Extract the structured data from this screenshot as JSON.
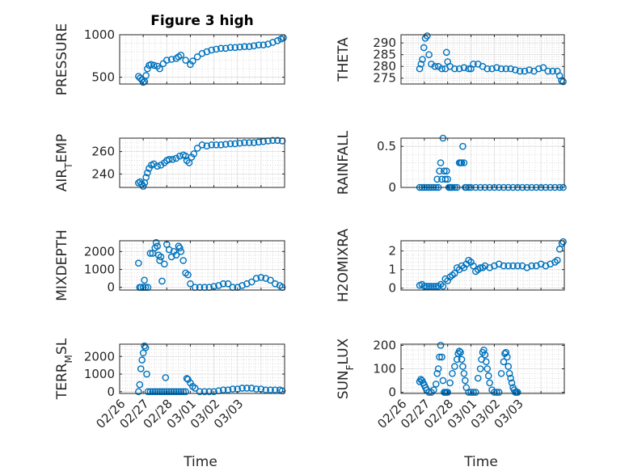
{
  "figure": {
    "title": "Figure 3 high"
  },
  "marker_color": "#0072BD",
  "chart_data": [
    {
      "id": "pressure",
      "type": "scatter",
      "title": "Figure 3 high",
      "xlabel": "",
      "ylabel": "PRESSURE",
      "ylim": [
        420,
        1000
      ],
      "yticks": [
        500,
        1000
      ],
      "ytick_labels": [
        "500",
        "1000"
      ],
      "xlim": [
        0,
        7
      ],
      "xticks": [
        0,
        1,
        2,
        3,
        4,
        5,
        6,
        7
      ],
      "xtick_labels": [],
      "grid": true,
      "x": [
        0.8,
        0.87,
        0.94,
        1.0,
        1.06,
        1.12,
        1.18,
        1.25,
        1.33,
        1.45,
        1.6,
        1.7,
        1.85,
        2.0,
        2.2,
        2.4,
        2.5,
        2.6,
        2.8,
        3.0,
        3.1,
        3.3,
        3.5,
        3.7,
        3.9,
        4.1,
        4.3,
        4.5,
        4.7,
        4.9,
        5.1,
        5.3,
        5.5,
        5.7,
        5.9,
        6.1,
        6.3,
        6.5,
        6.7,
        6.85,
        6.95
      ],
      "y": [
        510,
        490,
        470,
        440,
        450,
        520,
        600,
        640,
        650,
        640,
        630,
        600,
        660,
        700,
        710,
        720,
        740,
        760,
        700,
        650,
        690,
        740,
        780,
        800,
        820,
        830,
        840,
        840,
        850,
        850,
        855,
        860,
        860,
        870,
        880,
        880,
        890,
        910,
        930,
        950,
        965
      ]
    },
    {
      "id": "theta",
      "type": "scatter",
      "title": "",
      "xlabel": "",
      "ylabel": "THETA",
      "ylim": [
        272.5,
        293.5
      ],
      "yticks": [
        275,
        280,
        285,
        290
      ],
      "ytick_labels": [
        "275",
        "280",
        "285",
        "290"
      ],
      "xlim": [
        0,
        7
      ],
      "xticks": [
        0,
        1,
        2,
        3,
        4,
        5,
        6,
        7
      ],
      "xtick_labels": [],
      "grid": true,
      "x": [
        0.8,
        0.86,
        0.92,
        0.98,
        1.04,
        1.12,
        1.2,
        1.3,
        1.45,
        1.6,
        1.75,
        1.9,
        1.95,
        2.0,
        2.1,
        2.3,
        2.5,
        2.7,
        2.9,
        3.0,
        3.1,
        3.3,
        3.5,
        3.7,
        3.9,
        4.1,
        4.3,
        4.5,
        4.7,
        4.9,
        5.1,
        5.3,
        5.5,
        5.7,
        5.9,
        6.1,
        6.3,
        6.5,
        6.7,
        6.8,
        6.88,
        6.95
      ],
      "y": [
        279,
        281,
        283,
        288,
        292,
        293,
        285,
        281,
        280,
        280,
        279,
        279,
        286,
        282,
        280,
        279,
        279,
        279.5,
        279,
        279,
        281,
        281,
        280,
        279,
        279,
        279.5,
        279,
        279,
        279,
        278.5,
        278,
        278,
        278.5,
        278,
        279,
        279.5,
        278,
        278,
        278,
        276,
        274,
        273.5
      ]
    },
    {
      "id": "air_temp",
      "type": "scatter",
      "title": "",
      "xlabel": "",
      "ylabel": "AIR_TEMP",
      "ylim": [
        228,
        272
      ],
      "yticks": [
        240,
        260
      ],
      "ytick_labels": [
        "240",
        "260"
      ],
      "xlim": [
        0,
        7
      ],
      "xticks": [
        0,
        1,
        2,
        3,
        4,
        5,
        6,
        7
      ],
      "xtick_labels": [],
      "grid": true,
      "x": [
        0.8,
        0.87,
        0.94,
        1.0,
        1.06,
        1.12,
        1.18,
        1.25,
        1.35,
        1.45,
        1.6,
        1.75,
        1.9,
        2.0,
        2.1,
        2.25,
        2.4,
        2.55,
        2.7,
        2.8,
        2.85,
        2.95,
        3.05,
        3.15,
        3.3,
        3.5,
        3.7,
        3.9,
        4.1,
        4.3,
        4.5,
        4.7,
        4.9,
        5.1,
        5.3,
        5.5,
        5.7,
        5.9,
        6.1,
        6.3,
        6.5,
        6.7,
        6.9
      ],
      "y": [
        232,
        233,
        231,
        229,
        232,
        237,
        241,
        245,
        248,
        249,
        247,
        248,
        250,
        252,
        253,
        253,
        254,
        256,
        257,
        256,
        252,
        250,
        255,
        258,
        263,
        266,
        265,
        266,
        266,
        266,
        266.5,
        267,
        267,
        267.5,
        268,
        268,
        268,
        268.5,
        269,
        269.5,
        270,
        270,
        269.5
      ]
    },
    {
      "id": "rainfall",
      "type": "scatter",
      "title": "",
      "xlabel": "",
      "ylabel": "RAINFALL",
      "ylim": [
        0,
        0.6
      ],
      "yticks": [
        0,
        0.5
      ],
      "ytick_labels": [
        "0",
        "0.5"
      ],
      "xlim": [
        0,
        7
      ],
      "xticks": [
        0,
        1,
        2,
        3,
        4,
        5,
        6,
        7
      ],
      "xtick_labels": [],
      "grid": true,
      "x": [
        0.8,
        0.9,
        1.0,
        1.1,
        1.2,
        1.3,
        1.4,
        1.5,
        1.55,
        1.6,
        1.65,
        1.7,
        1.75,
        1.8,
        1.85,
        1.9,
        1.95,
        2.0,
        2.05,
        2.1,
        2.15,
        2.2,
        2.3,
        2.4,
        2.5,
        2.55,
        2.6,
        2.65,
        2.7,
        2.75,
        2.8,
        2.9,
        3.0,
        3.2,
        3.4,
        3.6,
        3.8,
        4.0,
        4.2,
        4.4,
        4.6,
        4.8,
        5.0,
        5.2,
        5.4,
        5.6,
        5.8,
        6.0,
        6.2,
        6.4,
        6.6,
        6.8,
        6.95
      ],
      "y": [
        0,
        0,
        0,
        0,
        0,
        0,
        0,
        0,
        0.1,
        0,
        0.2,
        0.3,
        0.1,
        0.6,
        0.2,
        0.1,
        0.2,
        0.1,
        0,
        0,
        0,
        0,
        0,
        0,
        0.3,
        0.3,
        0.3,
        0.5,
        0.3,
        0,
        0,
        0,
        0,
        0,
        0,
        0,
        0,
        0,
        0,
        0,
        0,
        0,
        0,
        0,
        0,
        0,
        0,
        0,
        0,
        0,
        0,
        0,
        0
      ]
    },
    {
      "id": "mixdepth",
      "type": "scatter",
      "title": "",
      "xlabel": "",
      "ylabel": "MIXDEPTH",
      "ylim": [
        -150,
        2600
      ],
      "yticks": [
        0,
        1000,
        2000
      ],
      "ytick_labels": [
        "0",
        "1000",
        "2000"
      ],
      "xlim": [
        0,
        7
      ],
      "xticks": [
        0,
        1,
        2,
        3,
        4,
        5,
        6,
        7
      ],
      "xtick_labels": [],
      "grid": true,
      "x": [
        0.8,
        0.85,
        0.9,
        1.0,
        1.05,
        1.1,
        1.2,
        1.3,
        1.4,
        1.5,
        1.55,
        1.6,
        1.65,
        1.7,
        1.75,
        1.8,
        1.9,
        2.0,
        2.1,
        2.2,
        2.3,
        2.4,
        2.5,
        2.55,
        2.6,
        2.7,
        2.8,
        2.9,
        3.0,
        3.2,
        3.4,
        3.6,
        3.8,
        4.0,
        4.2,
        4.4,
        4.6,
        4.8,
        5.0,
        5.2,
        5.4,
        5.6,
        5.8,
        6.0,
        6.2,
        6.4,
        6.6,
        6.8,
        6.9
      ],
      "y": [
        1350,
        0,
        0,
        0,
        400,
        0,
        0,
        1900,
        1900,
        2200,
        2500,
        2300,
        1800,
        1500,
        1700,
        350,
        1300,
        2400,
        2100,
        1700,
        2000,
        1800,
        2300,
        2200,
        2000,
        1500,
        800,
        700,
        200,
        0,
        0,
        0,
        0,
        50,
        100,
        200,
        200,
        0,
        0,
        100,
        200,
        300,
        500,
        550,
        500,
        400,
        200,
        100,
        0
      ]
    },
    {
      "id": "h2omixra",
      "type": "scatter",
      "title": "",
      "xlabel": "",
      "ylabel": "H2OMIXRA",
      "ylim": [
        -0.1,
        2.55
      ],
      "yticks": [
        0,
        1,
        2
      ],
      "ytick_labels": [
        "0",
        "1",
        "2"
      ],
      "xlim": [
        0,
        7
      ],
      "xticks": [
        0,
        1,
        2,
        3,
        4,
        5,
        6,
        7
      ],
      "xtick_labels": [],
      "grid": true,
      "x": [
        0.8,
        0.9,
        1.0,
        1.1,
        1.2,
        1.3,
        1.4,
        1.5,
        1.6,
        1.7,
        1.8,
        1.9,
        2.0,
        2.1,
        2.2,
        2.3,
        2.4,
        2.5,
        2.6,
        2.7,
        2.8,
        2.9,
        3.0,
        3.1,
        3.2,
        3.3,
        3.4,
        3.5,
        3.6,
        3.8,
        4.0,
        4.2,
        4.4,
        4.6,
        4.8,
        5.0,
        5.2,
        5.4,
        5.6,
        5.8,
        6.0,
        6.2,
        6.4,
        6.6,
        6.7,
        6.8,
        6.9,
        6.95
      ],
      "y": [
        0.15,
        0.2,
        0.1,
        0.1,
        0.1,
        0.1,
        0.1,
        0.1,
        0.1,
        0.2,
        0.1,
        0.5,
        0.4,
        0.6,
        0.7,
        0.8,
        1.1,
        1.0,
        1.2,
        1.1,
        1.3,
        1.5,
        1.4,
        1.2,
        0.9,
        1.0,
        1.1,
        1.1,
        1.2,
        1.1,
        1.2,
        1.3,
        1.2,
        1.2,
        1.2,
        1.2,
        1.2,
        1.1,
        1.2,
        1.2,
        1.3,
        1.2,
        1.3,
        1.4,
        1.5,
        2.1,
        2.4,
        2.5
      ]
    },
    {
      "id": "terr_msl",
      "type": "scatter",
      "title": "",
      "xlabel": "Time",
      "ylabel": "TERR_MSL",
      "ylim": [
        -100,
        2700
      ],
      "yticks": [
        0,
        1000,
        2000
      ],
      "ytick_labels": [
        "0",
        "1000",
        "2000"
      ],
      "xlim": [
        0,
        7
      ],
      "xticks": [
        0,
        1,
        2,
        3,
        4,
        5,
        6,
        7
      ],
      "xtick_labels": [
        "02/26",
        "02/27",
        "02/28",
        "03/01",
        "03/02",
        "03/03"
      ],
      "xtick_label_positions": [
        0,
        1,
        2,
        3,
        4,
        5
      ],
      "grid": true,
      "x": [
        0.8,
        0.85,
        0.9,
        0.95,
        1.0,
        1.05,
        1.1,
        1.15,
        1.2,
        1.3,
        1.4,
        1.5,
        1.6,
        1.7,
        1.8,
        1.9,
        1.95,
        2.0,
        2.1,
        2.2,
        2.3,
        2.4,
        2.5,
        2.6,
        2.7,
        2.8,
        2.85,
        2.9,
        3.0,
        3.1,
        3.2,
        3.4,
        3.6,
        3.8,
        4.0,
        4.2,
        4.4,
        4.6,
        4.8,
        5.0,
        5.2,
        5.4,
        5.6,
        5.8,
        6.0,
        6.2,
        6.4,
        6.6,
        6.8,
        6.9
      ],
      "y": [
        0,
        400,
        1300,
        1800,
        2200,
        2600,
        2500,
        1000,
        0,
        0,
        0,
        0,
        0,
        0,
        0,
        0,
        800,
        0,
        0,
        0,
        0,
        0,
        0,
        0,
        0,
        0,
        750,
        700,
        500,
        300,
        200,
        0,
        0,
        0,
        0,
        50,
        100,
        100,
        150,
        150,
        200,
        200,
        200,
        150,
        150,
        100,
        100,
        100,
        100,
        50
      ]
    },
    {
      "id": "sun_flux",
      "type": "scatter",
      "title": "",
      "xlabel": "Time",
      "ylabel": "SUN_FLUX",
      "ylim": [
        -5,
        205
      ],
      "yticks": [
        0,
        100,
        200
      ],
      "ytick_labels": [
        "0",
        "100",
        "200"
      ],
      "xlim": [
        0,
        7
      ],
      "xticks": [
        0,
        1,
        2,
        3,
        4,
        5,
        6,
        7
      ],
      "xtick_labels": [
        "02/26",
        "02/27",
        "02/28",
        "03/01",
        "03/02",
        "03/03"
      ],
      "xtick_label_positions": [
        0,
        1,
        2,
        3,
        4,
        5
      ],
      "grid": true,
      "x": [
        0.8,
        0.85,
        0.9,
        0.95,
        1.0,
        1.05,
        1.1,
        1.2,
        1.3,
        1.4,
        1.5,
        1.55,
        1.6,
        1.65,
        1.7,
        1.75,
        1.8,
        1.85,
        1.9,
        1.95,
        2.0,
        2.1,
        2.2,
        2.3,
        2.4,
        2.45,
        2.5,
        2.55,
        2.6,
        2.65,
        2.7,
        2.75,
        2.8,
        2.9,
        3.0,
        3.1,
        3.2,
        3.3,
        3.4,
        3.45,
        3.5,
        3.55,
        3.6,
        3.65,
        3.7,
        3.75,
        3.8,
        3.9,
        4.0,
        4.1,
        4.2,
        4.3,
        4.4,
        4.45,
        4.5,
        4.55,
        4.6,
        4.65,
        4.7,
        4.75,
        4.8,
        4.85,
        4.9,
        4.95,
        5.0
      ],
      "y": [
        45,
        55,
        50,
        40,
        30,
        20,
        10,
        0,
        0,
        10,
        35,
        80,
        100,
        150,
        200,
        150,
        50,
        0,
        0,
        0,
        0,
        40,
        80,
        110,
        140,
        165,
        175,
        170,
        140,
        110,
        80,
        50,
        20,
        0,
        0,
        0,
        0,
        60,
        100,
        140,
        170,
        180,
        160,
        130,
        100,
        70,
        40,
        10,
        0,
        0,
        0,
        80,
        130,
        165,
        170,
        150,
        110,
        80,
        60,
        40,
        20,
        10,
        0,
        0,
        0
      ]
    }
  ]
}
